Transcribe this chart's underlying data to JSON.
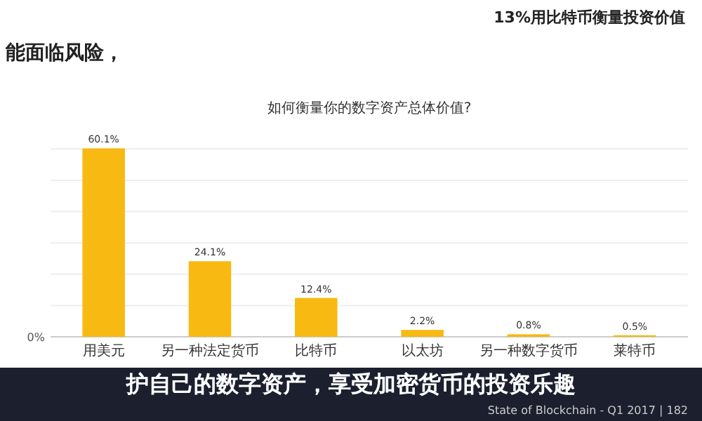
{
  "chart_data": {
    "type": "bar",
    "title": "如何衡量你的数字资产总体价值?",
    "categories": [
      "用美元",
      "另一种法定货币",
      "比特币",
      "以太坊",
      "另一种数字货币",
      "莱特币"
    ],
    "values": [
      60.1,
      24.1,
      12.4,
      2.2,
      0.8,
      0.5
    ],
    "value_labels": [
      "60.1%",
      "24.1%",
      "12.4%",
      "2.2%",
      "0.8%",
      "0.5%"
    ],
    "color": "#f7b912",
    "grid": "y",
    "annotations": [
      "13%用比特币衡量投资价值",
      "能面临风险，",
      "护自己的数字资产，享受加密货币的投资乐趣",
      "State of Blockchain - Q1 2017 | 182",
      "0%"
    ]
  }
}
